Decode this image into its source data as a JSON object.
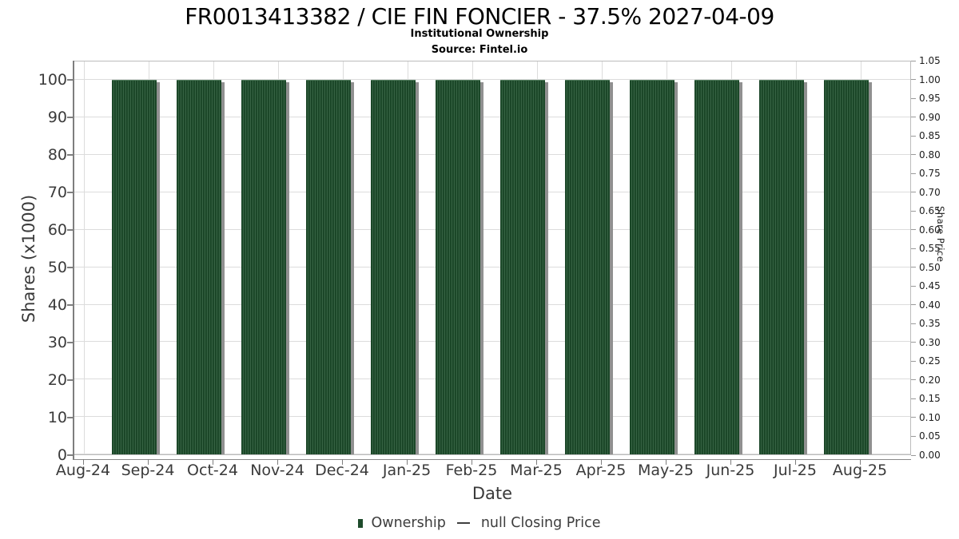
{
  "chart_data": {
    "type": "bar",
    "title": "FR0013413382 / CIE FIN FONCIER - 37.5% 2027-04-09",
    "subtitle": "Institutional Ownership",
    "source": "Source: Fintel.io",
    "xlabel": "Date",
    "ylabel_left": "Shares (x1000)",
    "ylabel_right": "Share Price",
    "categories": [
      "Aug-24",
      "Sep-24",
      "Oct-24",
      "Nov-24",
      "Dec-24",
      "Jan-25",
      "Feb-25",
      "Mar-25",
      "Apr-25",
      "May-25",
      "Jun-25",
      "Jul-25",
      "Aug-25"
    ],
    "series": [
      {
        "name": "Ownership",
        "type": "bar",
        "color": "#1e4b2b",
        "values": [
          null,
          100,
          100,
          100,
          100,
          100,
          100,
          100,
          100,
          100,
          100,
          100,
          100
        ]
      },
      {
        "name": "null Closing Price",
        "type": "line",
        "color": "#3f3f3f",
        "values": []
      }
    ],
    "ylim_left": [
      0,
      105
    ],
    "ylim_right": [
      0,
      1.05
    ],
    "left_ticks": [
      "0",
      "10",
      "20",
      "30",
      "40",
      "50",
      "60",
      "70",
      "80",
      "90",
      "100"
    ],
    "right_ticks": [
      "0.00",
      "0.05",
      "0.10",
      "0.15",
      "0.20",
      "0.25",
      "0.30",
      "0.35",
      "0.40",
      "0.45",
      "0.50",
      "0.55",
      "0.60",
      "0.65",
      "0.70",
      "0.75",
      "0.80",
      "0.85",
      "0.90",
      "0.95",
      "1.00",
      "1.05"
    ],
    "grid": true,
    "legend_position": "bottom",
    "colors": {
      "bar": "#1e4b2b",
      "bar_stripe_light": "#4f7a5b",
      "bar_stripe_dark": "#143d20",
      "bar_shadow": "#909090",
      "grid": "#dcdcdc",
      "frame": "#bcbcbc",
      "spine": "#7e7e7e",
      "text": "#3a3a3a"
    },
    "legend": [
      {
        "label": "Ownership",
        "marker": "square"
      },
      {
        "label": "null Closing Price",
        "marker": "line"
      }
    ]
  }
}
